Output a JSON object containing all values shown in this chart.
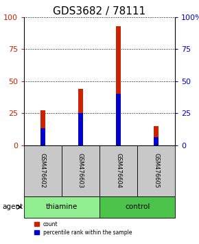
{
  "title": "GDS3682 / 78111",
  "samples": [
    "GSM476602",
    "GSM476603",
    "GSM476604",
    "GSM476605"
  ],
  "count_values": [
    27,
    44,
    93,
    15
  ],
  "percentile_values": [
    13,
    25,
    40,
    6
  ],
  "groups": [
    "thiamine",
    "thiamine",
    "control",
    "control"
  ],
  "thiamine_color": "#90EE90",
  "control_color": "#4CC44C",
  "bar_color_count": "#CC2200",
  "bar_color_percentile": "#0000CC",
  "ylim": [
    0,
    100
  ],
  "yticks": [
    0,
    25,
    50,
    75,
    100
  ],
  "agent_label": "agent",
  "legend_count": "count",
  "legend_percentile": "percentile rank within the sample",
  "title_fontsize": 11,
  "tick_fontsize": 8,
  "bar_width": 0.12,
  "background_color": "#ffffff"
}
